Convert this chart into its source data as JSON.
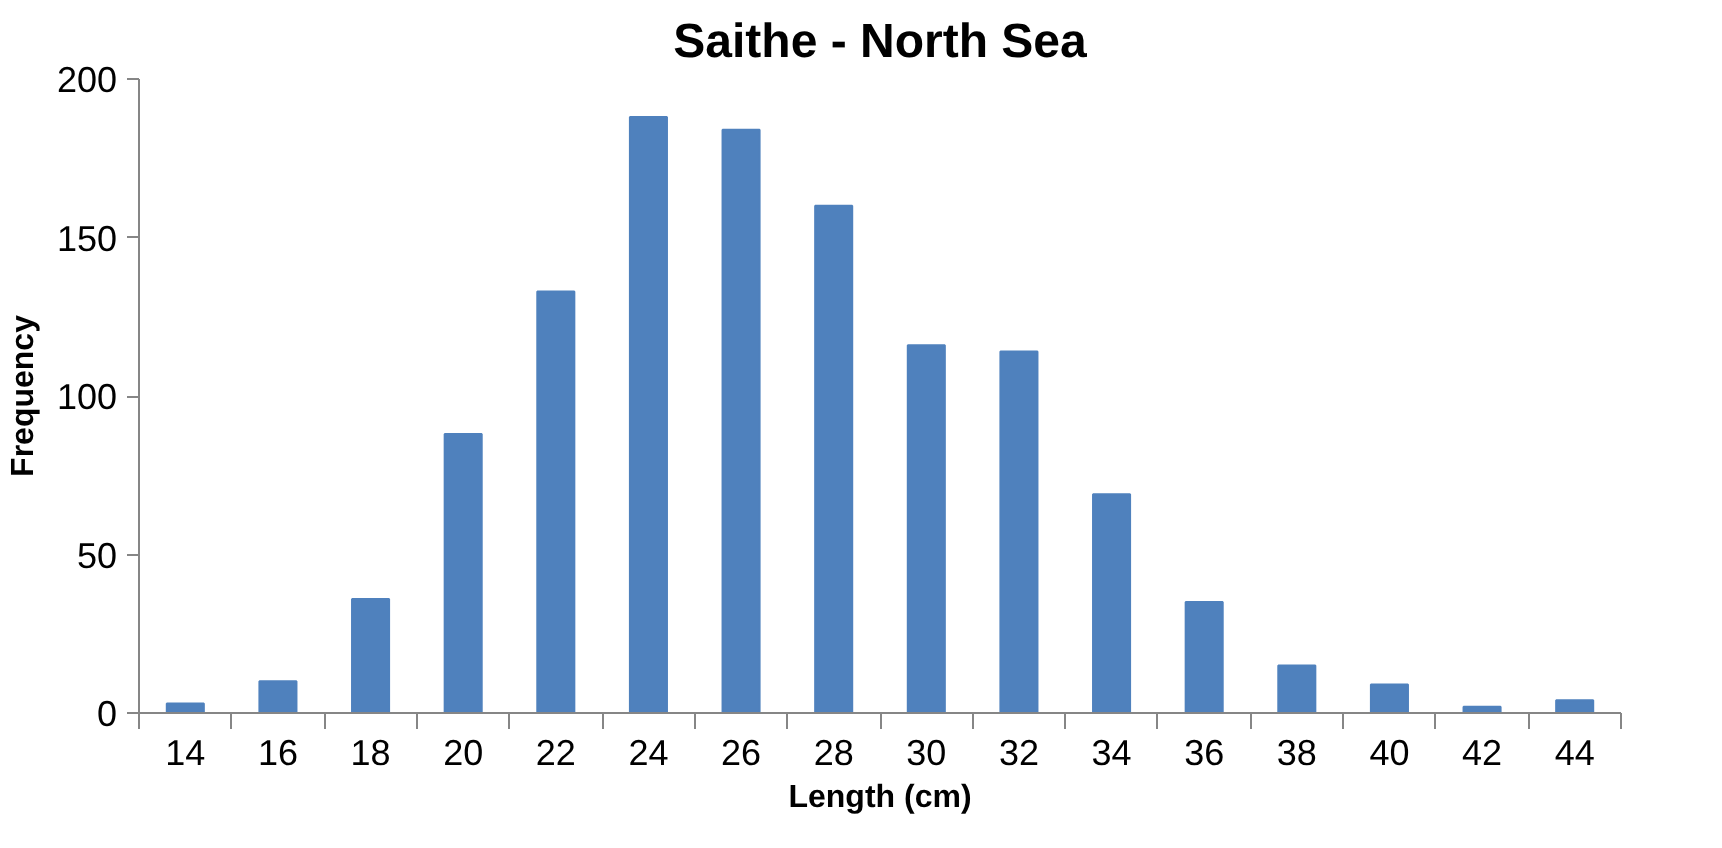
{
  "chart_data": {
    "type": "bar",
    "title": "Saithe - North Sea",
    "xlabel": "Length (cm)",
    "ylabel": "Frequency",
    "categories": [
      "14",
      "16",
      "18",
      "20",
      "22",
      "24",
      "26",
      "28",
      "30",
      "32",
      "34",
      "36",
      "38",
      "40",
      "42",
      "44"
    ],
    "values": [
      3,
      10,
      36,
      88,
      133,
      188,
      184,
      160,
      116,
      114,
      69,
      35,
      15,
      9,
      2,
      4
    ],
    "color": "#4f81bd",
    "ylim": [
      0,
      200
    ],
    "yticks": [
      0,
      50,
      100,
      150,
      200
    ],
    "grid": false
  }
}
